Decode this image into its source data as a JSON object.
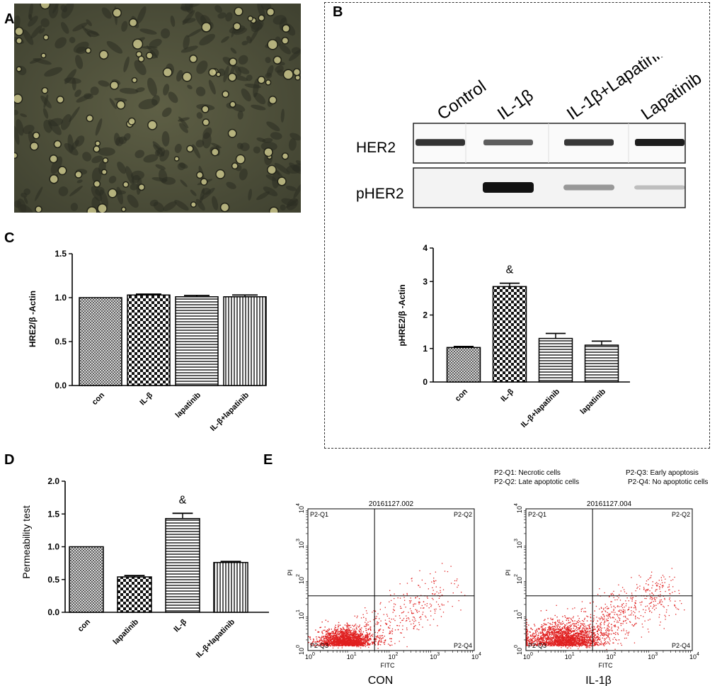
{
  "panel_letters": {
    "a": "A",
    "b": "B",
    "c": "C",
    "d": "D",
    "e": "E"
  },
  "western_blot": {
    "lanes": [
      "Control",
      "IL-1β",
      "IL-1β+Lapatinib",
      "Lapatinib"
    ],
    "rows": [
      "HER2",
      "pHER2"
    ],
    "her2_intensity": [
      0.85,
      0.55,
      0.8,
      1.0
    ],
    "pher2_intensity": [
      0.0,
      1.0,
      0.3,
      0.1
    ]
  },
  "chart_data": [
    {
      "id": "B",
      "type": "bar",
      "title": "",
      "ylabel": "pHRE2/β -Actin",
      "xlabel": "",
      "categories": [
        "con",
        "IL-β",
        "IL-β+lapatinib",
        "lapatinib"
      ],
      "values": [
        1.03,
        2.85,
        1.3,
        1.1
      ],
      "errors": [
        0.03,
        0.1,
        0.15,
        0.12
      ],
      "patterns": [
        "crosshatch",
        "checker",
        "horizontal",
        "horizontal"
      ],
      "ylim": [
        0,
        4
      ],
      "yticks": [
        "0",
        "1",
        "2",
        "3",
        "4"
      ],
      "annotations": [
        {
          "category": "IL-β",
          "text": "&"
        }
      ]
    },
    {
      "id": "C",
      "type": "bar",
      "title": "",
      "ylabel": "HRE2/β -Actin",
      "xlabel": "",
      "categories": [
        "con",
        "IL-β",
        "lapatinib",
        "IL-β+lapatinib"
      ],
      "values": [
        1.0,
        1.03,
        1.01,
        1.01
      ],
      "errors": [
        0.0,
        0.01,
        0.015,
        0.02
      ],
      "patterns": [
        "crosshatch",
        "checker",
        "horizontal",
        "vertical"
      ],
      "ylim": [
        0,
        1.5
      ],
      "yticks": [
        "0.0",
        "0.5",
        "1.0",
        "1.5"
      ],
      "annotations": []
    },
    {
      "id": "D",
      "type": "bar",
      "title": "",
      "ylabel": "Permeability test",
      "xlabel": "",
      "categories": [
        "con",
        "lapatinib",
        "IL-β",
        "IL-β+lapatinib"
      ],
      "values": [
        1.0,
        0.54,
        1.43,
        0.76
      ],
      "errors": [
        0.0,
        0.02,
        0.08,
        0.015
      ],
      "patterns": [
        "crosshatch",
        "checker",
        "horizontal",
        "vertical"
      ],
      "ylim": [
        0,
        2.0
      ],
      "yticks": [
        "0.0",
        "0.5",
        "1.0",
        "1.5",
        "2.0"
      ],
      "annotations": [
        {
          "category": "IL-β",
          "text": "&"
        }
      ]
    },
    {
      "id": "E-CON",
      "type": "scatter",
      "title": "20161127.002",
      "xlabel": "FITC",
      "ylabel": "PI",
      "caption": "CON",
      "xlim": [
        1,
        10000
      ],
      "ylim": [
        1,
        10000
      ],
      "log_scale": true,
      "gate": {
        "x": 40,
        "y": 35
      },
      "quadrants": [
        "P2-Q1",
        "P2-Q2",
        "P2-Q3",
        "P2-Q4"
      ],
      "color": "#e02020"
    },
    {
      "id": "E-IL",
      "type": "scatter",
      "title": "20161127.004",
      "xlabel": "FITC",
      "ylabel": "PI",
      "caption": "IL-1β",
      "xlim": [
        1,
        10000
      ],
      "ylim": [
        1,
        10000
      ],
      "log_scale": true,
      "gate": {
        "x": 40,
        "y": 35
      },
      "quadrants": [
        "P2-Q1",
        "P2-Q2",
        "P2-Q3",
        "P2-Q4"
      ],
      "color": "#e02020"
    }
  ],
  "flow_legend": {
    "q1": "P2-Q1: Necrotic cells",
    "q2": "P2-Q2: Late apoptotic cells",
    "q3": "P2-Q3: Early apoptosis",
    "q4": "P2-Q4: No apoptotic cells"
  },
  "log_tick_labels": [
    "10",
    "10",
    "10",
    "10",
    "10"
  ],
  "log_tick_exponents": [
    "0",
    "1",
    "2",
    "3",
    "4"
  ]
}
